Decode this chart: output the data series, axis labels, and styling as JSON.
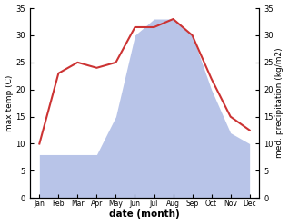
{
  "months": [
    "Jan",
    "Feb",
    "Mar",
    "Apr",
    "May",
    "Jun",
    "Jul",
    "Aug",
    "Sep",
    "Oct",
    "Nov",
    "Dec"
  ],
  "temperature": [
    10,
    23,
    25,
    24,
    25,
    31.5,
    31.5,
    33,
    30,
    22,
    15,
    12.5
  ],
  "precipitation": [
    8,
    8,
    8,
    8,
    15,
    30,
    33,
    33,
    30,
    20,
    12,
    10
  ],
  "temp_color": "#cc3333",
  "precip_color": "#b8c4e8",
  "ylim_left": [
    0,
    35
  ],
  "ylim_right": [
    0,
    35
  ],
  "ylabel_left": "max temp (C)",
  "ylabel_right": "med. precipitation (kg/m2)",
  "xlabel": "date (month)",
  "bg_color": "#ffffff",
  "fig_width": 3.18,
  "fig_height": 2.47,
  "dpi": 100
}
